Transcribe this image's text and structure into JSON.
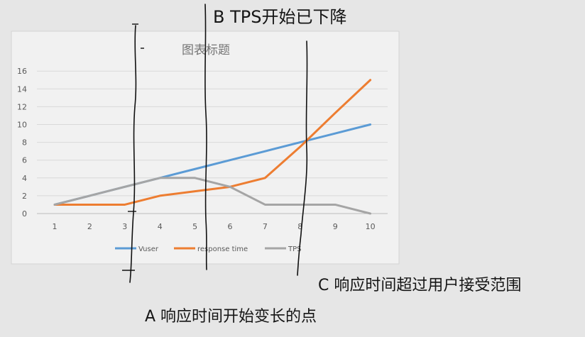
{
  "annotations": {
    "b": "B TPS开始已下降",
    "c": "C 响应时间超过用户接受范围",
    "a": "A 响应时间开始变长的点"
  },
  "chart_data": {
    "type": "line",
    "title": "图表标题",
    "categories": [
      "1",
      "2",
      "3",
      "4",
      "5",
      "6",
      "7",
      "8",
      "9",
      "10"
    ],
    "yticks": [
      "0",
      "2",
      "4",
      "6",
      "8",
      "10",
      "12",
      "14",
      "16"
    ],
    "ylim": [
      0,
      16
    ],
    "grid": true,
    "legend_position": "bottom",
    "series": [
      {
        "name": "Vuser",
        "color": "#5b9bd5",
        "values": [
          1,
          2,
          3,
          4,
          5,
          6,
          7,
          8,
          9,
          10
        ]
      },
      {
        "name": "response time",
        "color": "#ed7d31",
        "values": [
          1,
          1,
          1,
          2,
          2.5,
          3,
          4,
          7.5,
          11.3,
          15
        ]
      },
      {
        "name": "TPS",
        "color": "#a5a5a5",
        "values": [
          1,
          2,
          3,
          4,
          4,
          3,
          1,
          1,
          1,
          0
        ]
      }
    ]
  }
}
